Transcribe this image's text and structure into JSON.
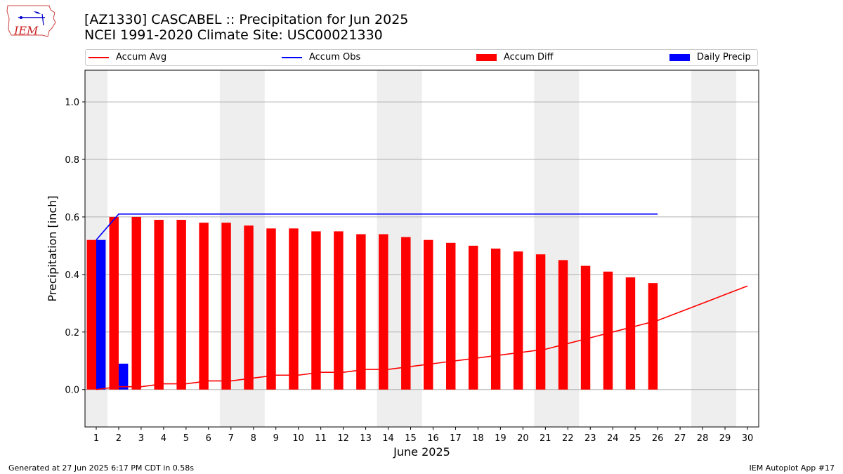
{
  "header": {
    "title_line1": "[AZ1330] CASCABEL :: Precipitation for Jun 2025",
    "title_line2": "NCEI 1991-2020 Climate Site: USC00021330",
    "logo_text": "IEM"
  },
  "footer": {
    "left": "Generated at 27 Jun 2025 6:17 PM CDT in 0.58s",
    "right": "IEM Autoplot App #17"
  },
  "legend": [
    {
      "label": "Accum Avg",
      "kind": "line",
      "color": "#ff0000"
    },
    {
      "label": "Accum Obs",
      "kind": "line",
      "color": "#0000ff"
    },
    {
      "label": "Accum Diff",
      "kind": "bar",
      "color": "#ff0000"
    },
    {
      "label": "Daily Precip",
      "kind": "bar",
      "color": "#0000ff"
    }
  ],
  "chart_data": {
    "type": "bar",
    "title": "[AZ1330] CASCABEL :: Precipitation for Jun 2025",
    "subtitle": "NCEI 1991-2020 Climate Site: USC00021330",
    "xlabel": "June 2025",
    "ylabel": "Precipitation [inch]",
    "x": [
      1,
      2,
      3,
      4,
      5,
      6,
      7,
      8,
      9,
      10,
      11,
      12,
      13,
      14,
      15,
      16,
      17,
      18,
      19,
      20,
      21,
      22,
      23,
      24,
      25,
      26,
      27,
      28,
      29,
      30
    ],
    "xlim": [
      0.5,
      30.5
    ],
    "ylim": [
      -0.13,
      1.11
    ],
    "yticks": [
      0.0,
      0.2,
      0.4,
      0.6,
      0.8,
      1.0
    ],
    "ytick_labels": [
      "0.0",
      "0.2",
      "0.4",
      "0.6",
      "0.8",
      "1.0"
    ],
    "grid": "horizontal",
    "legend_position": "top",
    "weekend_shading": [
      [
        0.5,
        1.5
      ],
      [
        6.5,
        8.5
      ],
      [
        13.5,
        15.5
      ],
      [
        20.5,
        22.5
      ],
      [
        27.5,
        29.5
      ]
    ],
    "shading_color": "#eeeeee",
    "series": [
      {
        "name": "Accum Diff",
        "kind": "bar",
        "color": "#ff0000",
        "x": [
          1,
          2,
          3,
          4,
          5,
          6,
          7,
          8,
          9,
          10,
          11,
          12,
          13,
          14,
          15,
          16,
          17,
          18,
          19,
          20,
          21,
          22,
          23,
          24,
          25,
          26
        ],
        "values": [
          0.52,
          0.6,
          0.6,
          0.59,
          0.59,
          0.58,
          0.58,
          0.57,
          0.56,
          0.56,
          0.55,
          0.55,
          0.54,
          0.54,
          0.53,
          0.52,
          0.51,
          0.5,
          0.49,
          0.48,
          0.47,
          0.45,
          0.43,
          0.41,
          0.39,
          0.37
        ]
      },
      {
        "name": "Daily Precip",
        "kind": "bar",
        "color": "#0000ff",
        "x": [
          1,
          2
        ],
        "values": [
          0.52,
          0.09
        ]
      },
      {
        "name": "Accum Avg",
        "kind": "line",
        "color": "#ff0000",
        "x": [
          1,
          2,
          3,
          4,
          5,
          6,
          7,
          8,
          9,
          10,
          11,
          12,
          13,
          14,
          15,
          16,
          17,
          18,
          19,
          20,
          21,
          22,
          23,
          24,
          25,
          26,
          27,
          28,
          29,
          30
        ],
        "values": [
          0.0,
          0.01,
          0.01,
          0.02,
          0.02,
          0.03,
          0.03,
          0.04,
          0.05,
          0.05,
          0.06,
          0.06,
          0.07,
          0.07,
          0.08,
          0.09,
          0.1,
          0.11,
          0.12,
          0.13,
          0.14,
          0.16,
          0.18,
          0.2,
          0.22,
          0.24,
          0.27,
          0.3,
          0.33,
          0.36
        ]
      },
      {
        "name": "Accum Obs",
        "kind": "line",
        "color": "#0000ff",
        "x": [
          1,
          2,
          3,
          4,
          5,
          6,
          7,
          8,
          9,
          10,
          11,
          12,
          13,
          14,
          15,
          16,
          17,
          18,
          19,
          20,
          21,
          22,
          23,
          24,
          25,
          26
        ],
        "values": [
          0.52,
          0.61,
          0.61,
          0.61,
          0.61,
          0.61,
          0.61,
          0.61,
          0.61,
          0.61,
          0.61,
          0.61,
          0.61,
          0.61,
          0.61,
          0.61,
          0.61,
          0.61,
          0.61,
          0.61,
          0.61,
          0.61,
          0.61,
          0.61,
          0.61,
          0.61
        ]
      }
    ]
  }
}
